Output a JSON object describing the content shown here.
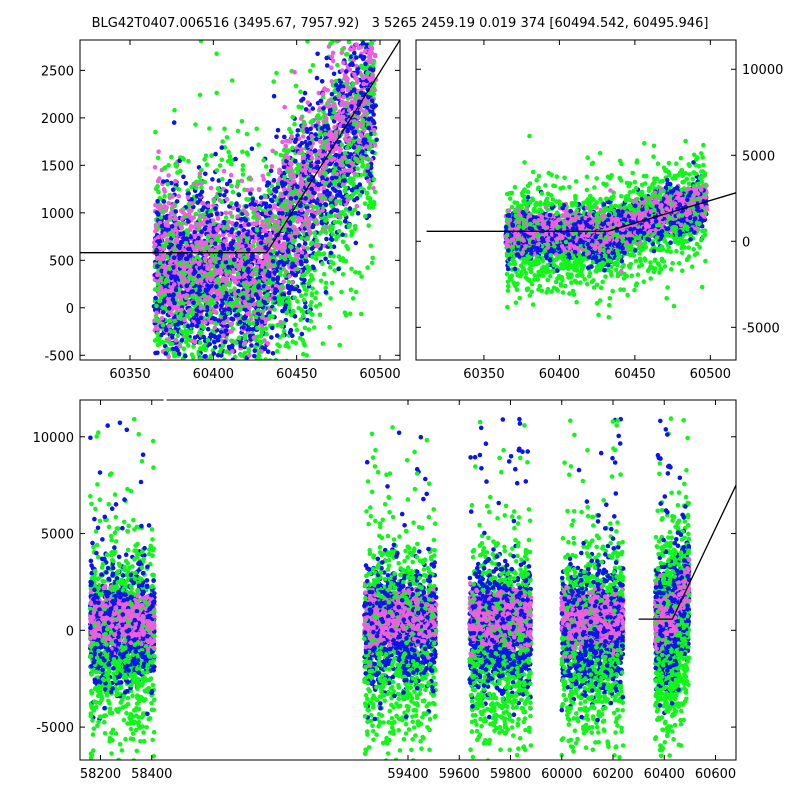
{
  "title": "BLG42T0407.006516 (3495.67, 7957.92)   3 5265 2459.19 0.019 374 [60494.542, 60495.946]",
  "series_colors": {
    "magenta": "#ee5fdd",
    "blue": "#0a14ec",
    "green": "#12f51a"
  },
  "model_color": "#000000",
  "chart_data": [
    {
      "panel": "top-left",
      "type": "scatter",
      "xlim": [
        60320,
        60512
      ],
      "ylim": [
        -550,
        2820
      ],
      "xticks": [
        60350,
        60400,
        60450,
        60500
      ],
      "yticks": [
        -500,
        0,
        500,
        1000,
        1500,
        2000,
        2500
      ],
      "ytick_side": "left",
      "clusters": [
        [
          60365,
          60380
        ],
        [
          60380,
          60398
        ],
        [
          60398,
          60418
        ],
        [
          60418,
          60436
        ],
        [
          60436,
          60456
        ],
        [
          60456,
          60477
        ],
        [
          60477,
          60497
        ]
      ],
      "model_line": [
        [
          60320,
          580
        ],
        [
          60432,
          580
        ],
        [
          60512,
          2820
        ]
      ]
    },
    {
      "panel": "top-right",
      "type": "scatter",
      "xlim": [
        60305,
        60517
      ],
      "ylim": [
        -6900,
        11700
      ],
      "xticks": [
        60350,
        60400,
        60450,
        60500
      ],
      "yticks": [
        -5000,
        0,
        5000,
        10000
      ],
      "ytick_side": "right",
      "clusters": [
        [
          60365,
          60380
        ],
        [
          60380,
          60398
        ],
        [
          60398,
          60418
        ],
        [
          60418,
          60436
        ],
        [
          60436,
          60456
        ],
        [
          60456,
          60477
        ],
        [
          60477,
          60497
        ]
      ],
      "model_line": [
        [
          60312,
          580
        ],
        [
          60432,
          580
        ],
        [
          60517,
          2820
        ]
      ]
    },
    {
      "panel": "bottom",
      "type": "scatter",
      "xlim": [
        58120,
        60680
      ],
      "ylim": [
        -6700,
        11900
      ],
      "xticks": [
        58200,
        58400,
        59400,
        59600,
        59800,
        60000,
        60200,
        60400,
        60600
      ],
      "yticks": [
        -5000,
        0,
        5000,
        10000
      ],
      "ytick_side": "left",
      "axis_break_x": 58452,
      "seasons": [
        [
          58160,
          58410
        ],
        [
          59230,
          59510
        ],
        [
          59640,
          59880
        ],
        [
          60000,
          60240
        ],
        [
          60365,
          60497
        ]
      ],
      "model_line": [
        [
          60300,
          580
        ],
        [
          60432,
          580
        ],
        [
          60680,
          7500
        ]
      ]
    }
  ]
}
